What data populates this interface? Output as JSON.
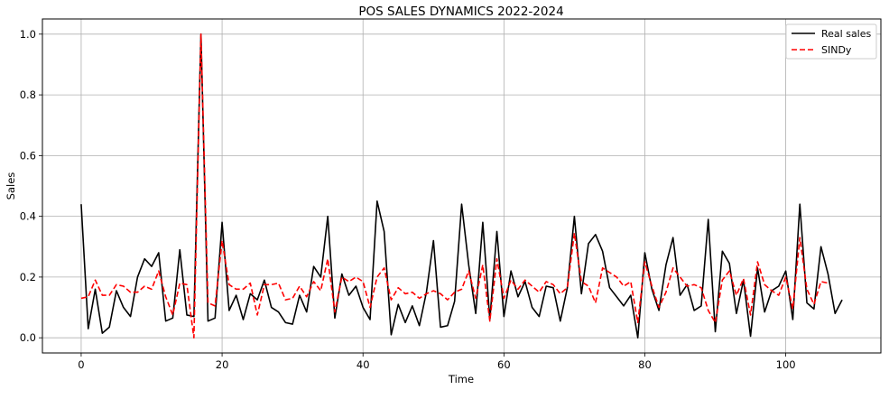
{
  "chart_data": {
    "type": "line",
    "title": "POS SALES DYNAMICS 2022-2024",
    "xlabel": "Time",
    "ylabel": "Sales",
    "xlim": [
      -5.5,
      113.5
    ],
    "ylim": [
      -0.05,
      1.05
    ],
    "xticks": [
      0,
      20,
      40,
      60,
      80,
      100
    ],
    "yticks": [
      0.0,
      0.2,
      0.4,
      0.6,
      0.8,
      1.0
    ],
    "xtick_labels": [
      "0",
      "20",
      "40",
      "60",
      "80",
      "100"
    ],
    "ytick_labels": [
      "0.0",
      "0.2",
      "0.4",
      "0.6",
      "0.8",
      "1.0"
    ],
    "grid": true,
    "legend_position": "top-right",
    "x": [
      0,
      1,
      2,
      3,
      4,
      5,
      6,
      7,
      8,
      9,
      10,
      11,
      12,
      13,
      14,
      15,
      16,
      17,
      18,
      19,
      20,
      21,
      22,
      23,
      24,
      25,
      26,
      27,
      28,
      29,
      30,
      31,
      32,
      33,
      34,
      35,
      36,
      37,
      38,
      39,
      40,
      41,
      42,
      43,
      44,
      45,
      46,
      47,
      48,
      49,
      50,
      51,
      52,
      53,
      54,
      55,
      56,
      57,
      58,
      59,
      60,
      61,
      62,
      63,
      64,
      65,
      66,
      67,
      68,
      69,
      70,
      71,
      72,
      73,
      74,
      75,
      76,
      77,
      78,
      79,
      80,
      81,
      82,
      83,
      84,
      85,
      86,
      87,
      88,
      89,
      90,
      91,
      92,
      93,
      94,
      95,
      96,
      97,
      98,
      99,
      100,
      101,
      102,
      103,
      104,
      105,
      106,
      107,
      108
    ],
    "series": [
      {
        "name": "Real sales",
        "color": "#000000",
        "dash": "solid",
        "values": [
          0.44,
          0.03,
          0.16,
          0.015,
          0.035,
          0.155,
          0.1,
          0.07,
          0.2,
          0.26,
          0.235,
          0.28,
          0.055,
          0.065,
          0.29,
          0.075,
          0.07,
          1.0,
          0.055,
          0.065,
          0.38,
          0.09,
          0.14,
          0.06,
          0.145,
          0.125,
          0.19,
          0.1,
          0.085,
          0.05,
          0.045,
          0.14,
          0.085,
          0.235,
          0.2,
          0.4,
          0.065,
          0.21,
          0.14,
          0.17,
          0.1,
          0.06,
          0.45,
          0.35,
          0.01,
          0.11,
          0.05,
          0.105,
          0.04,
          0.15,
          0.32,
          0.035,
          0.04,
          0.12,
          0.44,
          0.24,
          0.08,
          0.38,
          0.06,
          0.35,
          0.07,
          0.22,
          0.135,
          0.185,
          0.1,
          0.07,
          0.17,
          0.165,
          0.055,
          0.165,
          0.4,
          0.145,
          0.31,
          0.34,
          0.285,
          0.165,
          0.135,
          0.105,
          0.14,
          0.0,
          0.28,
          0.16,
          0.09,
          0.24,
          0.33,
          0.14,
          0.175,
          0.09,
          0.105,
          0.39,
          0.02,
          0.285,
          0.245,
          0.08,
          0.19,
          0.005,
          0.23,
          0.085,
          0.155,
          0.17,
          0.22,
          0.06,
          0.44,
          0.115,
          0.095,
          0.3,
          0.21,
          0.08,
          0.125
        ]
      },
      {
        "name": "SINDy",
        "color": "#ff0000",
        "dash": "dashed",
        "values": [
          0.13,
          0.135,
          0.19,
          0.14,
          0.14,
          0.175,
          0.17,
          0.15,
          0.15,
          0.17,
          0.16,
          0.22,
          0.135,
          0.075,
          0.18,
          0.175,
          0.0,
          1.0,
          0.115,
          0.105,
          0.32,
          0.175,
          0.16,
          0.16,
          0.18,
          0.075,
          0.175,
          0.175,
          0.18,
          0.125,
          0.13,
          0.17,
          0.135,
          0.185,
          0.155,
          0.26,
          0.085,
          0.2,
          0.185,
          0.2,
          0.185,
          0.1,
          0.2,
          0.23,
          0.125,
          0.165,
          0.145,
          0.15,
          0.13,
          0.145,
          0.155,
          0.145,
          0.125,
          0.15,
          0.16,
          0.22,
          0.13,
          0.24,
          0.055,
          0.26,
          0.13,
          0.19,
          0.16,
          0.19,
          0.17,
          0.15,
          0.185,
          0.175,
          0.145,
          0.165,
          0.345,
          0.185,
          0.17,
          0.115,
          0.23,
          0.215,
          0.2,
          0.17,
          0.185,
          0.05,
          0.25,
          0.17,
          0.1,
          0.15,
          0.23,
          0.2,
          0.17,
          0.175,
          0.165,
          0.09,
          0.05,
          0.19,
          0.22,
          0.14,
          0.195,
          0.075,
          0.25,
          0.175,
          0.155,
          0.14,
          0.2,
          0.095,
          0.33,
          0.16,
          0.11,
          0.185,
          0.18,
          null,
          null
        ]
      }
    ]
  }
}
